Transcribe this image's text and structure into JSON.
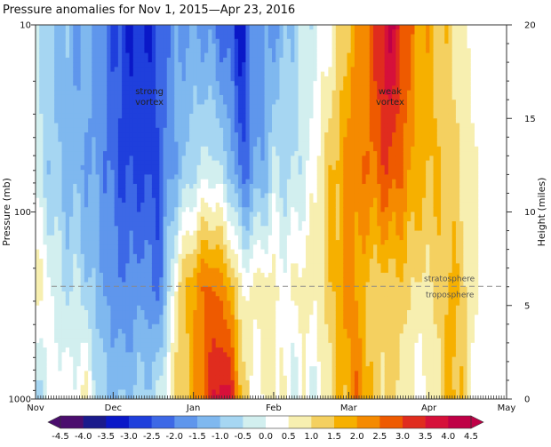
{
  "chart_data": {
    "type": "heatmap",
    "title": "Pressure anomalies for Nov 1, 2015—Apr 23, 2016",
    "ylabel": "Pressure (mb)",
    "y2label": "Height (miles)",
    "y_scale": "log",
    "ylim": [
      1000,
      10
    ],
    "y_ticks": [
      "10",
      "100",
      "1000"
    ],
    "y2lim": [
      0,
      20
    ],
    "y2_ticks": [
      "0",
      "5",
      "10",
      "15",
      "20"
    ],
    "x_range": [
      "2015-11-01",
      "2016-05-01"
    ],
    "x_ticks": [
      "Nov",
      "Dec",
      "Jan",
      "Feb",
      "Mar",
      "Apr",
      "May"
    ],
    "colorbar": {
      "levels": [
        "-4.5",
        "-4.0",
        "-3.5",
        "-3.0",
        "-2.5",
        "-2.0",
        "-1.5",
        "-1.0",
        "-0.5",
        "0.0",
        "0.5",
        "1.0",
        "1.5",
        "2.0",
        "2.5",
        "3.0",
        "3.5",
        "4.0",
        "4.5"
      ],
      "colors": [
        "#4b0d6e",
        "#1a1a8c",
        "#0a18c8",
        "#1f3fdc",
        "#3d68e6",
        "#5f96ec",
        "#7fb8ef",
        "#a6d6f2",
        "#d2efef",
        "#ffffff",
        "#f7efb0",
        "#f4d060",
        "#f6b000",
        "#f58a00",
        "#ee5a00",
        "#e02c1e",
        "#d6103a",
        "#bf0046"
      ]
    },
    "tropopause_pressure_mb": 250,
    "annotations": {
      "strong_vortex": [
        "strong",
        "vortex"
      ],
      "weak_vortex": [
        "weak",
        "vortex"
      ],
      "stratosphere": "stratosphere",
      "troposphere": "troposphere"
    },
    "columns": [
      {
        "date": "2015-11-01",
        "a": 0.3,
        "b": -0.3,
        "c": 0.8,
        "d": -0.6
      },
      {
        "date": "2015-11-05",
        "a": -0.8,
        "b": -0.8,
        "c": 0.4,
        "d": -0.4
      },
      {
        "date": "2015-11-09",
        "a": -1.0,
        "b": -1.0,
        "c": -0.2,
        "d": 0.4
      },
      {
        "date": "2015-11-13",
        "a": -1.2,
        "b": -1.2,
        "c": -0.6,
        "d": 0.2
      },
      {
        "date": "2015-11-17",
        "a": -1.5,
        "b": -1.3,
        "c": -0.4,
        "d": 0.3
      },
      {
        "date": "2015-11-21",
        "a": -1.4,
        "b": -1.5,
        "c": -0.9,
        "d": 0.7
      },
      {
        "date": "2015-11-25",
        "a": -1.6,
        "b": -1.6,
        "c": -1.2,
        "d": -0.6
      },
      {
        "date": "2015-11-29",
        "a": -2.2,
        "b": -2.0,
        "c": -1.6,
        "d": -1.0
      },
      {
        "date": "2015-12-03",
        "a": -2.6,
        "b": -2.4,
        "c": -1.8,
        "d": -1.2
      },
      {
        "date": "2015-12-07",
        "a": -3.0,
        "b": -2.6,
        "c": -2.0,
        "d": -1.0
      },
      {
        "date": "2015-12-11",
        "a": -2.8,
        "b": -2.6,
        "c": -1.6,
        "d": -0.8
      },
      {
        "date": "2015-12-15",
        "a": -2.9,
        "b": -2.7,
        "c": -1.9,
        "d": -0.7
      },
      {
        "date": "2015-12-19",
        "a": -2.4,
        "b": -2.4,
        "c": -2.2,
        "d": -0.4
      },
      {
        "date": "2015-12-23",
        "a": -1.8,
        "b": -1.6,
        "c": -0.4,
        "d": 0.8
      },
      {
        "date": "2015-12-27",
        "a": -1.6,
        "b": -1.2,
        "c": 1.2,
        "d": 1.2
      },
      {
        "date": "2015-12-31",
        "a": -1.4,
        "b": -0.8,
        "c": 1.8,
        "d": 1.6
      },
      {
        "date": "2016-01-04",
        "a": -1.6,
        "b": -0.4,
        "c": 2.4,
        "d": 2.2
      },
      {
        "date": "2016-01-08",
        "a": -1.8,
        "b": -0.2,
        "c": 2.6,
        "d": 3.2
      },
      {
        "date": "2016-01-12",
        "a": -2.2,
        "b": -0.6,
        "c": 2.2,
        "d": 4.0
      },
      {
        "date": "2016-01-16",
        "a": -2.6,
        "b": -1.2,
        "c": 1.6,
        "d": 3.2
      },
      {
        "date": "2016-01-20",
        "a": -3.5,
        "b": -2.4,
        "c": 0.4,
        "d": 1.4
      },
      {
        "date": "2016-01-24",
        "a": -1.6,
        "b": -1.6,
        "c": 0.6,
        "d": 0.2
      },
      {
        "date": "2016-01-28",
        "a": -1.8,
        "b": -1.4,
        "c": 0.8,
        "d": 0.4
      },
      {
        "date": "2016-02-01",
        "a": -1.6,
        "b": -0.4,
        "c": 0.6,
        "d": 0.8
      },
      {
        "date": "2016-02-05",
        "a": -1.2,
        "b": -0.6,
        "c": 0.2,
        "d": 0.4
      },
      {
        "date": "2016-02-09",
        "a": -0.8,
        "b": -0.6,
        "c": 0.6,
        "d": -0.4
      },
      {
        "date": "2016-02-13",
        "a": -0.4,
        "b": -0.2,
        "c": 0.8,
        "d": 0.4
      },
      {
        "date": "2016-02-17",
        "a": -0.2,
        "b": 0.4,
        "c": 0.6,
        "d": -0.2
      },
      {
        "date": "2016-02-21",
        "a": 0.2,
        "b": 1.2,
        "c": 1.2,
        "d": 0.6
      },
      {
        "date": "2016-02-25",
        "a": 0.6,
        "b": 1.6,
        "c": 1.6,
        "d": 1.2
      },
      {
        "date": "2016-02-29",
        "a": 1.4,
        "b": 2.2,
        "c": 2.4,
        "d": 1.6
      },
      {
        "date": "2016-03-04",
        "a": 2.0,
        "b": 2.4,
        "c": 2.0,
        "d": 2.4
      },
      {
        "date": "2016-03-08",
        "a": 2.4,
        "b": 2.4,
        "c": 1.4,
        "d": 1.8
      },
      {
        "date": "2016-03-12",
        "a": 3.2,
        "b": 2.6,
        "c": 1.2,
        "d": 1.0
      },
      {
        "date": "2016-03-16",
        "a": 4.2,
        "b": 3.0,
        "c": 1.2,
        "d": 1.2
      },
      {
        "date": "2016-03-20",
        "a": 3.6,
        "b": 2.6,
        "c": 1.4,
        "d": 1.0
      },
      {
        "date": "2016-03-24",
        "a": 2.6,
        "b": 2.2,
        "c": 1.2,
        "d": 0.4
      },
      {
        "date": "2016-03-28",
        "a": 2.0,
        "b": 1.8,
        "c": 0.8,
        "d": 0.2
      },
      {
        "date": "2016-04-01",
        "a": 1.8,
        "b": 1.6,
        "c": 1.0,
        "d": 0.6
      },
      {
        "date": "2016-04-05",
        "a": 1.4,
        "b": 1.4,
        "c": 1.2,
        "d": 1.0
      },
      {
        "date": "2016-04-09",
        "a": 1.2,
        "b": 1.2,
        "c": 1.6,
        "d": 1.8
      },
      {
        "date": "2016-04-13",
        "a": 0.8,
        "b": 1.0,
        "c": 1.4,
        "d": 1.6
      },
      {
        "date": "2016-04-17",
        "a": 0.4,
        "b": 0.6,
        "c": 0.8,
        "d": 0.6
      },
      {
        "date": "2016-04-21",
        "a": 0.2,
        "b": 0.4,
        "c": 0.4,
        "d": 0.2
      }
    ]
  }
}
